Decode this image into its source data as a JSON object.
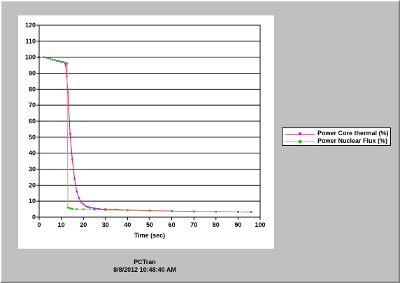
{
  "chart_data": {
    "type": "line",
    "title": "",
    "xlabel": "Time (sec)",
    "ylabel": "",
    "xlim": [
      0,
      100
    ],
    "ylim": [
      0,
      120
    ],
    "x_ticks": [
      0,
      10,
      20,
      30,
      40,
      50,
      60,
      70,
      80,
      90,
      100
    ],
    "y_ticks": [
      0,
      10,
      20,
      30,
      40,
      50,
      60,
      70,
      80,
      90,
      100,
      110,
      120
    ],
    "grid": "horizontal",
    "legend_position": "right",
    "series": [
      {
        "name": "Power Core thermal (%)",
        "color": "#cc0066",
        "marker_color": "#9933ff",
        "points": [
          [
            0,
            100
          ],
          [
            3,
            99.8
          ],
          [
            5,
            99
          ],
          [
            7,
            98.2
          ],
          [
            9,
            97.5
          ],
          [
            11,
            97
          ],
          [
            12,
            95
          ],
          [
            12.5,
            88
          ],
          [
            13,
            78
          ],
          [
            14,
            52
          ],
          [
            15,
            36
          ],
          [
            16,
            24
          ],
          [
            17,
            16
          ],
          [
            18,
            12
          ],
          [
            19,
            9.5
          ],
          [
            20,
            8
          ],
          [
            21,
            7
          ],
          [
            22,
            6.4
          ],
          [
            23,
            6
          ],
          [
            25,
            5.5
          ],
          [
            27,
            5.2
          ],
          [
            30,
            5
          ],
          [
            35,
            4.7
          ],
          [
            40,
            4.4
          ],
          [
            50,
            4.1
          ],
          [
            60,
            3.8
          ],
          [
            70,
            3.6
          ],
          [
            80,
            3.4
          ],
          [
            90,
            3.3
          ],
          [
            96,
            3.2
          ]
        ]
      },
      {
        "name": "Power Nuclear Flux (%)",
        "color": "#cc9966",
        "marker_color": "#00cc00",
        "points": [
          [
            0,
            100
          ],
          [
            2,
            100
          ],
          [
            4,
            99.5
          ],
          [
            6,
            98.5
          ],
          [
            8,
            97.5
          ],
          [
            10,
            97
          ],
          [
            12,
            96.5
          ],
          [
            12.6,
            96
          ],
          [
            13,
            6
          ],
          [
            14,
            5.5
          ],
          [
            15,
            5.2
          ],
          [
            17,
            5
          ],
          [
            20,
            4.9
          ],
          [
            25,
            4.7
          ],
          [
            30,
            4.5
          ],
          [
            40,
            4.3
          ],
          [
            50,
            4
          ],
          [
            60,
            3.7
          ],
          [
            70,
            3.5
          ],
          [
            80,
            3.4
          ],
          [
            90,
            3.3
          ],
          [
            96,
            3.2
          ]
        ]
      }
    ]
  },
  "footer": {
    "line1": "PCTran",
    "line2": "8/8/2012 10:48:40 AM"
  }
}
